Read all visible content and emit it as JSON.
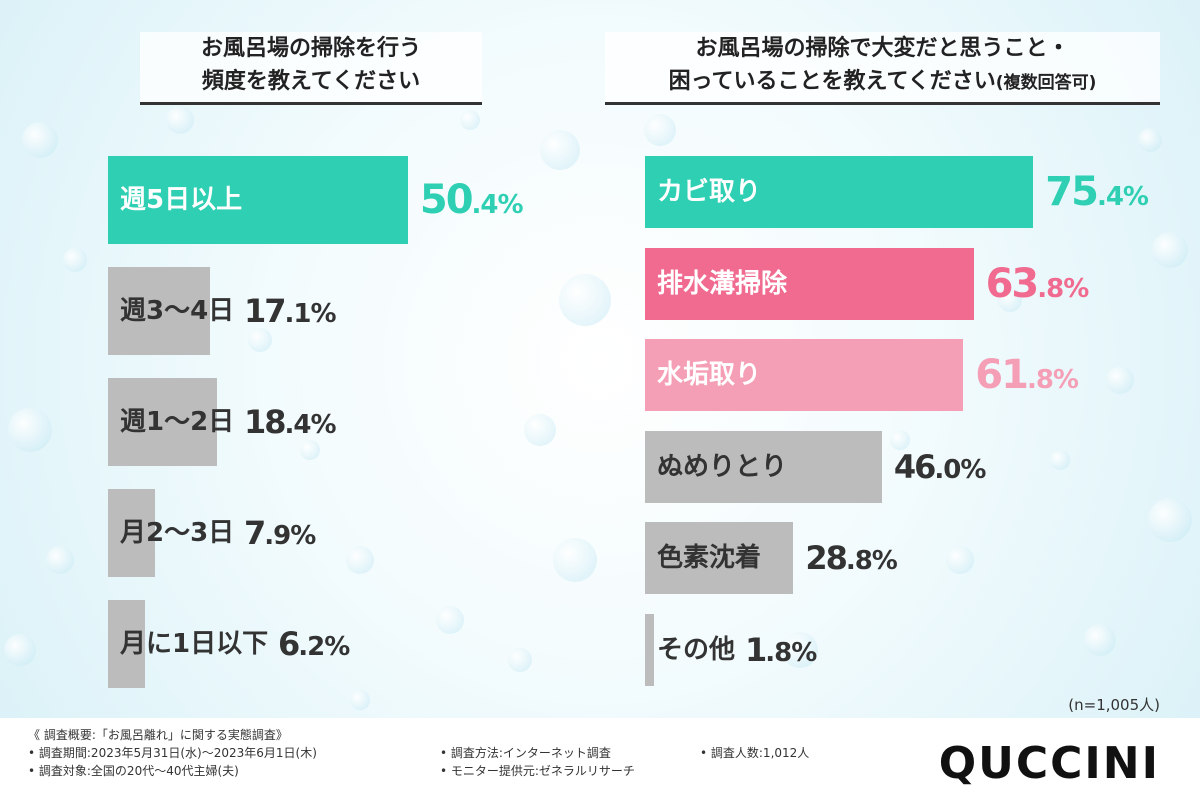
{
  "left_chart": {
    "title_line1": "お風呂場の掃除を行う",
    "title_line2": "頻度を教えてください"
  },
  "right_chart": {
    "title_line1": "お風呂場の掃除で大変だと思うこと・",
    "title_line2": "困っていることを教えてください",
    "title_suffix": "(複数回答可)",
    "sample_note": "(n=1,005人)"
  },
  "chart_data": [
    {
      "type": "bar",
      "orientation": "horizontal",
      "title": "お風呂場の掃除を行う頻度を教えてください",
      "categories": [
        "週5日以上",
        "週3〜4日",
        "週1〜2日",
        "月2〜3日",
        "月に1日以下"
      ],
      "values": [
        50.4,
        17.1,
        18.4,
        7.9,
        6.2
      ],
      "value_labels": [
        "50.4%",
        "17.1%",
        "18.4%",
        "7.9%",
        "6.2%"
      ],
      "colors": [
        "#2ecfb3",
        "#bcbcbc",
        "#bcbcbc",
        "#bcbcbc",
        "#bcbcbc"
      ],
      "unit": "%"
    },
    {
      "type": "bar",
      "orientation": "horizontal",
      "title": "お風呂場の掃除で大変だと思うこと・困っていることを教えてください(複数回答可)",
      "categories": [
        "カビ取り",
        "排水溝掃除",
        "水垢取り",
        "ぬめりとり",
        "色素沈着",
        "その他"
      ],
      "values": [
        75.4,
        63.8,
        61.8,
        46.0,
        28.8,
        1.8
      ],
      "value_labels": [
        "75.4%",
        "63.8%",
        "61.8%",
        "46.0%",
        "28.8%",
        "1.8%"
      ],
      "colors": [
        "#2ecfb3",
        "#f06b8f",
        "#f59fb6",
        "#bcbcbc",
        "#bcbcbc",
        "#bcbcbc"
      ],
      "unit": "%",
      "note": "(n=1,005人)"
    }
  ],
  "footer": {
    "summary": "《 調査概要:「お風呂離れ」に関する実態調査》",
    "period": "• 調査期間:2023年5月31日(水)〜2023年6月1日(木)",
    "target": "• 調査対象:全国の20代〜40代主婦(夫)",
    "method": "• 調査方法:インターネット調査",
    "provider": "• モニター提供元:ゼネラルリサーチ",
    "count": "• 調査人数:1,012人",
    "logo": "QUCCINI"
  },
  "colors": {
    "accent_green": "#2ecfb3",
    "accent_pink": "#f06b8f",
    "accent_light_pink": "#f59fb6",
    "gray": "#bcbcbc"
  }
}
